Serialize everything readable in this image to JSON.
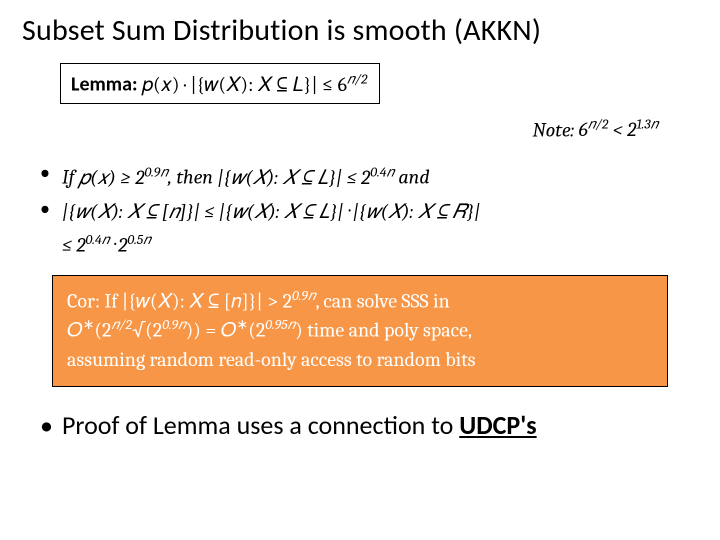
{
  "title": "Subset Sum Distribution is smooth (AKKN)",
  "lemma": {
    "label": "Lemma:",
    "formula_html": "𝑝(𝑥) · |{𝑤(𝑋): 𝑋 ⊆ 𝐿}| ≤ 6<sup>𝑛/2</sup>"
  },
  "note": {
    "prefix": "Note: ",
    "formula_html": "6<sup>𝑛/2</sup> < 2<sup>1.3𝑛</sup>"
  },
  "bullet1": {
    "if_text": "If  ",
    "part1_html": "𝑝(𝑥) ≥ 2<sup>0.9𝑛</sup>",
    "then_text": ", then ",
    "part2_html": "|{𝑤(𝑋): 𝑋 ⊆ 𝐿}| ≤ 2<sup>0.4𝑛</sup>",
    "and_text": " and"
  },
  "bullet2": {
    "line1_html": "|{𝑤(𝑋): 𝑋 ⊆ [𝑛]}| ≤ |{𝑤(𝑋): 𝑋 ⊆ 𝐿}| · |{𝑤(𝑋): 𝑋 ⊆ 𝑅}|",
    "line2_html": "≤ 2<sup>0.4𝑛</sup> · 2<sup>0.5𝑛</sup>"
  },
  "cor": {
    "line1_html": "Cor: If |{𝑤(𝑋): 𝑋 ⊆ [𝑛]}| > 2<sup>0.9𝑛</sup>, can solve SSS in",
    "line2_html": "𝑂<sup class=\"upright\">∗</sup>(2<sup>𝑛/2</sup>√(2<sup>0.9𝑛</sup>)) = 𝑂<sup class=\"upright\">∗</sup>(2<sup>0.95𝑛</sup>) time and poly space,",
    "line3": "assuming random read-only access to random bits"
  },
  "final": {
    "text": "Proof of Lemma uses a connection to ",
    "bold": "UDCP's"
  },
  "colors": {
    "background": "#ffffff",
    "text": "#000000",
    "cor_bg": "#f79646",
    "cor_text": "#ffffff",
    "border": "#000000"
  },
  "typography": {
    "title_fontsize": 30,
    "body_fontsize": 20,
    "final_fontsize": 26,
    "math_family": "Cambria",
    "ui_family": "Calibri"
  }
}
